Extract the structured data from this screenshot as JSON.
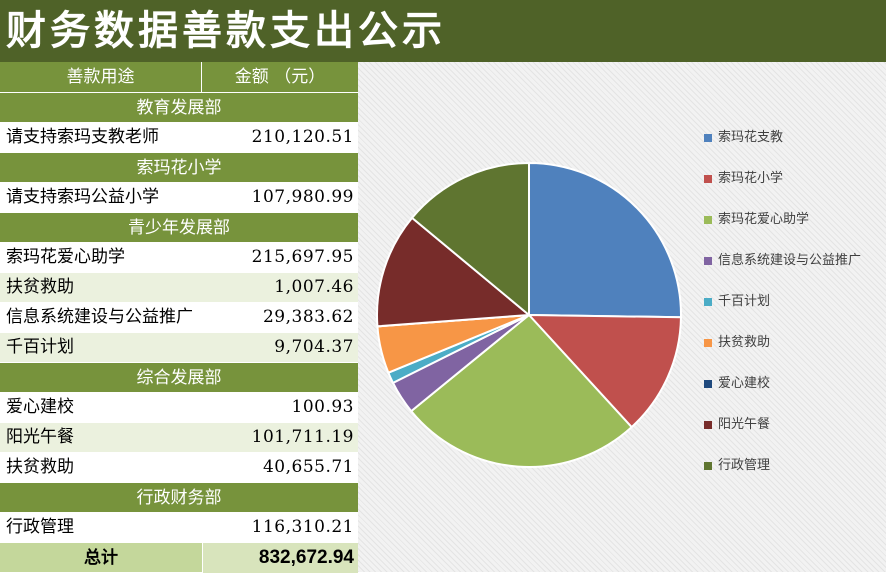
{
  "title": "财务数据善款支出公示",
  "table": {
    "col_use": "善款用途",
    "col_amount": "金额 （元）",
    "sections": [
      {
        "name": "教育发展部",
        "items": [
          {
            "label": "请支持索玛支教老师",
            "amount": "210,120.51"
          }
        ]
      },
      {
        "name": "索玛花小学",
        "items": [
          {
            "label": "请支持索玛公益小学",
            "amount": "107,980.99"
          }
        ]
      },
      {
        "name": "青少年发展部",
        "items": [
          {
            "label": "索玛花爱心助学",
            "amount": "215,697.95"
          },
          {
            "label": "扶贫救助",
            "amount": "1,007.46"
          },
          {
            "label": "信息系统建设与公益推广",
            "amount": "29,383.62"
          },
          {
            "label": "千百计划",
            "amount": "9,704.37"
          }
        ]
      },
      {
        "name": "综合发展部",
        "items": [
          {
            "label": "爱心建校",
            "amount": "100.93"
          },
          {
            "label": "阳光午餐",
            "amount": "101,711.19"
          },
          {
            "label": "扶贫救助",
            "amount": "40,655.71"
          }
        ]
      },
      {
        "name": "行政财务部",
        "items": [
          {
            "label": "行政管理",
            "amount": "116,310.21"
          }
        ]
      }
    ],
    "total_label": "总计",
    "total_value": "832,672.94"
  },
  "chart_data": {
    "type": "pie",
    "legend_position": "right",
    "categories": [
      "索玛花支教",
      "索玛花小学",
      "索玛花爱心助学",
      "信息系统建设与公益推广",
      "千百计划",
      "扶贫救助",
      "爱心建校",
      "阳光午餐",
      "行政管理"
    ],
    "values": [
      210120.51,
      107980.99,
      215697.95,
      29383.62,
      9704.37,
      41663.17,
      100.93,
      101711.19,
      116310.21
    ],
    "colors": [
      "#4f81bd",
      "#c0504d",
      "#9bbb59",
      "#8064a2",
      "#4bacc6",
      "#f79646",
      "#1f497d",
      "#772c2a",
      "#5f7530"
    ]
  }
}
